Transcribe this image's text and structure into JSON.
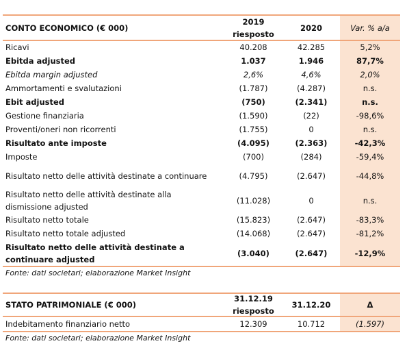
{
  "income": {
    "header": [
      "CONTO ECONOMICO (€ 000)",
      "2019\nriesposto",
      "2020",
      "Var. % a/a"
    ],
    "rows": [
      [
        "Ricavi",
        "40.208",
        "42.285",
        "5,2%"
      ],
      [
        "Ebitda adjusted",
        "1.037",
        "1.946",
        "87,7%"
      ],
      [
        "Ebitda margin adjusted",
        "2,6%",
        "4,6%",
        "2,0%"
      ],
      [
        "Ammortamenti e svalutazioni",
        "(1.787)",
        "(4.287)",
        "n.s."
      ],
      [
        "Ebit adjusted",
        "(750)",
        "(2.341)",
        "n.s."
      ],
      [
        "Gestione finanziaria",
        "(1.590)",
        "(22)",
        "-98,6%"
      ],
      [
        "Proventi/oneri non ricorrenti",
        "(1.755)",
        "0",
        "n.s."
      ],
      [
        "Risultato ante imposte",
        "(4.095)",
        "(2.363)",
        "-42,3%"
      ],
      [
        "Imposte",
        "(700)",
        "(284)",
        "-59,4%"
      ],
      [
        "Risultato netto delle attività destinate a continuare",
        "(4.795)",
        "(2.647)",
        "-44,8%"
      ],
      [
        "Risultato netto delle attività destinate alla dismissione adjusted",
        "(11.028)",
        "0",
        "n.s."
      ],
      [
        "Risultato netto totale",
        "(15.823)",
        "(2.647)",
        "-83,3%"
      ],
      [
        "Risultato netto totale adjusted",
        "(14.068)",
        "(2.647)",
        "-81,2%"
      ],
      [
        "Risultato netto delle attività destinate a continuare adjusted",
        "(3.040)",
        "(2.647)",
        "-12,9%"
      ]
    ],
    "source": "Fonte: dati societari; elaborazione Market Insight"
  },
  "balance": {
    "header": [
      "STATO PATRIMONIALE (€ 000)",
      "31.12.19\nriesposto",
      "31.12.20",
      "Δ"
    ],
    "rows": [
      [
        "Indebitamento finanziario netto",
        "12.309",
        "10.712",
        "(1.597)"
      ]
    ],
    "source": "Fonte: dati societari; elaborazione Market Insight"
  }
}
